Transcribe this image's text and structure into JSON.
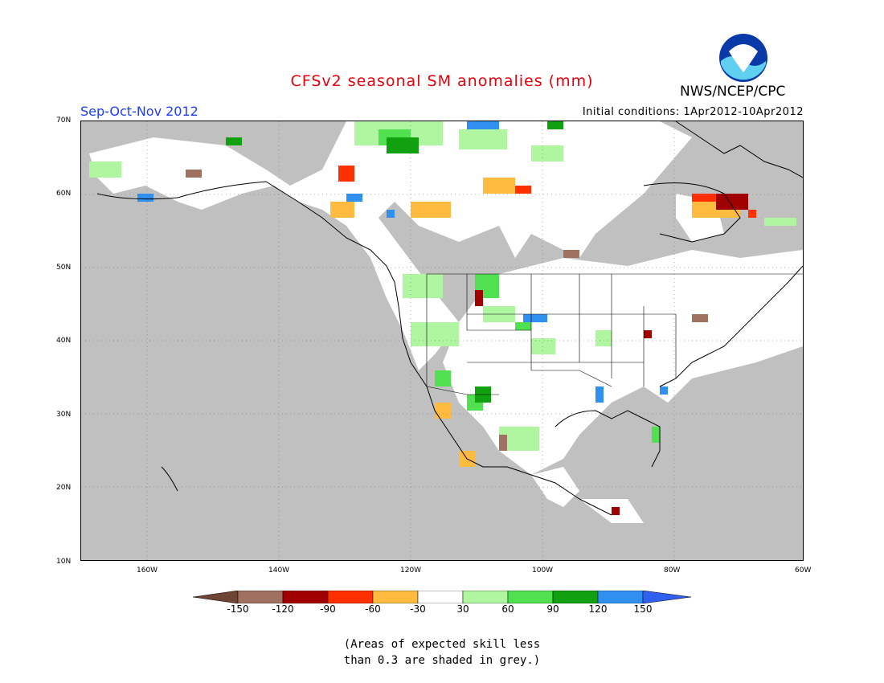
{
  "header": {
    "title": "CFSv2 seasonal SM anomalies (mm)",
    "season": "Sep-Oct-Nov 2012",
    "initial_conditions": "Initial conditions: 1Apr2012-10Apr2012",
    "org": "NWS/NCEP/CPC",
    "logo_text": "NOAA"
  },
  "map": {
    "lat_ticks": [
      "70N",
      "60N",
      "50N",
      "40N",
      "30N",
      "20N",
      "10N"
    ],
    "lon_ticks": [
      "160W",
      "140W",
      "120W",
      "100W",
      "80W",
      "60W"
    ],
    "colors": {
      "grey": "#c0c0c0",
      "ocean": "#ffffff",
      "land_white": "#ffffff"
    }
  },
  "colorbar": {
    "labels": [
      "-150",
      "-120",
      "-90",
      "-60",
      "-30",
      "30",
      "60",
      "90",
      "120",
      "150"
    ],
    "colors": [
      "#6e4534",
      "#a07060",
      "#a00000",
      "#ff3000",
      "#ffbb40",
      "#ffffff",
      "#b0f5a0",
      "#50e050",
      "#10a010",
      "#3090f0",
      "#3060f0"
    ]
  },
  "footnote": {
    "line1": "(Areas of expected skill less",
    "line2": "than 0.3 are shaded in grey.)"
  }
}
